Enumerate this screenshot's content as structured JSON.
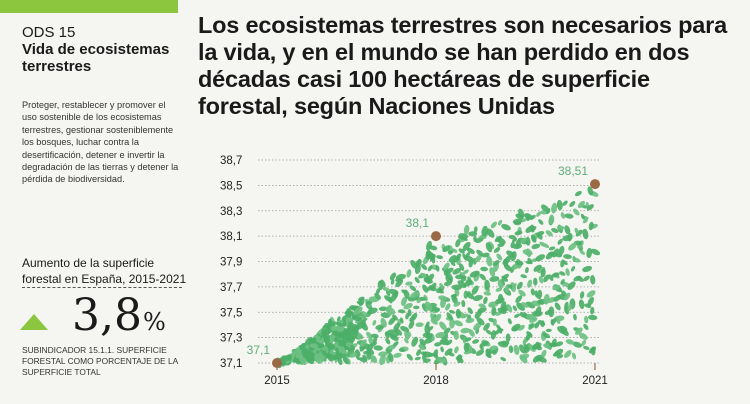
{
  "sidebar": {
    "ods_number": "ODS 15",
    "ods_title": "Vida de ecosistemas terrestres",
    "ods_description": "Proteger, restablecer y promover el uso sostenible de los ecosistemas terrestres, gestionar sosteniblemente los bosques, luchar contra la desertificación, detener e invertir la degradación de las tierras y detener la pérdida de biodiversidad.",
    "stat_label": "Aumento de la superficie forestal en España, 2015-2021",
    "stat_value": "3,8",
    "stat_unit": "%",
    "stat_note": "SUBINDICADOR 15.1.1. SUPERFICIE FORESTAL COMO PORCENTAJE DE LA SUPERFICIE TOTAL"
  },
  "headline": "Los ecosistemas terrestres son necesarios para la vida, y en el mundo se han perdido en dos décadas casi 100 hectáreas de superficie forestal, según Naciones Unidas",
  "colors": {
    "accent": "#8cc63f",
    "leaf": "#4caf68",
    "leaf_light": "#6cc083",
    "point": "#9a6a47",
    "label": "#5fae78"
  },
  "chart_data": {
    "type": "area",
    "x": [
      2015,
      2018,
      2021
    ],
    "y": [
      37.1,
      38.1,
      38.51
    ],
    "point_labels": [
      "37,1",
      "38,1",
      "38,51"
    ],
    "x_ticks": [
      "2015",
      "2018",
      "2021"
    ],
    "y_ticks": [
      "37,1",
      "37,3",
      "37,5",
      "37,7",
      "37,9",
      "38,1",
      "38,3",
      "38,5",
      "38,7"
    ],
    "y_tick_values": [
      37.1,
      37.3,
      37.5,
      37.7,
      37.9,
      38.1,
      38.3,
      38.5,
      38.7
    ],
    "ylim": [
      37.1,
      38.7
    ],
    "grid": true
  }
}
